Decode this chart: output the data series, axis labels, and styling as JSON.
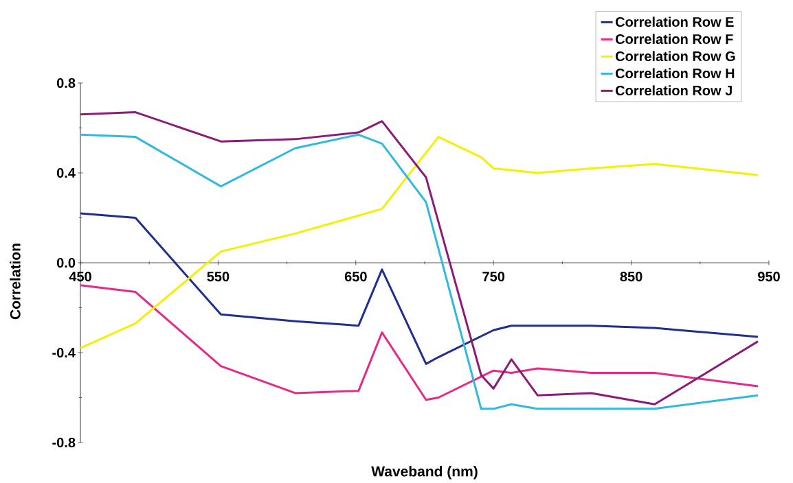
{
  "chart_data": {
    "type": "line",
    "xlabel": "Waveband (nm)",
    "ylabel": "Correlation",
    "xlim": [
      450,
      950
    ],
    "ylim": [
      -0.8,
      0.8
    ],
    "xticks": [
      450,
      550,
      650,
      750,
      850,
      950
    ],
    "yticks": [
      -0.8,
      -0.4,
      {
        "value": 0,
        "label": "0.0"
      },
      0.4,
      0.8
    ],
    "legend": "top right",
    "grid": false,
    "marker": "none",
    "line_style": "solid",
    "series": [
      {
        "name": "Correlation Row E",
        "color": "#1f2f8f",
        "x": [
          450,
          490,
          552,
          606,
          652,
          669,
          701,
          710,
          750,
          763,
          821,
          867,
          942
        ],
        "values": [
          0.22,
          0.2,
          -0.23,
          -0.26,
          -0.28,
          -0.03,
          -0.45,
          -0.42,
          -0.3,
          -0.28,
          -0.28,
          -0.29,
          -0.33
        ]
      },
      {
        "name": "Correlation Row F",
        "color": "#e6288a",
        "x": [
          450,
          490,
          552,
          606,
          652,
          669,
          701,
          710,
          750,
          763,
          782,
          821,
          867,
          942
        ],
        "values": [
          -0.1,
          -0.13,
          -0.46,
          -0.58,
          -0.57,
          -0.31,
          -0.61,
          -0.6,
          -0.48,
          -0.49,
          -0.47,
          -0.49,
          -0.49,
          -0.55
        ]
      },
      {
        "name": "Correlation Row G",
        "color": "#f5f000",
        "x": [
          450,
          490,
          552,
          606,
          652,
          669,
          710,
          741,
          750,
          782,
          821,
          867,
          942
        ],
        "values": [
          -0.38,
          -0.27,
          0.05,
          0.13,
          0.21,
          0.24,
          0.56,
          0.47,
          0.42,
          0.4,
          0.42,
          0.44,
          0.39
        ]
      },
      {
        "name": "Correlation Row H",
        "color": "#30b8e0",
        "x": [
          450,
          490,
          552,
          606,
          652,
          669,
          701,
          741,
          750,
          763,
          782,
          867,
          942
        ],
        "values": [
          0.57,
          0.56,
          0.34,
          0.51,
          0.57,
          0.53,
          0.27,
          -0.65,
          -0.65,
          -0.63,
          -0.65,
          -0.65,
          -0.59
        ]
      },
      {
        "name": "Correlation Row J",
        "color": "#8b1a78",
        "x": [
          450,
          490,
          552,
          606,
          652,
          669,
          701,
          741,
          750,
          763,
          782,
          821,
          867,
          942
        ],
        "values": [
          0.66,
          0.67,
          0.54,
          0.55,
          0.58,
          0.63,
          0.38,
          -0.5,
          -0.56,
          -0.43,
          -0.59,
          -0.58,
          -0.63,
          -0.35
        ]
      }
    ]
  }
}
